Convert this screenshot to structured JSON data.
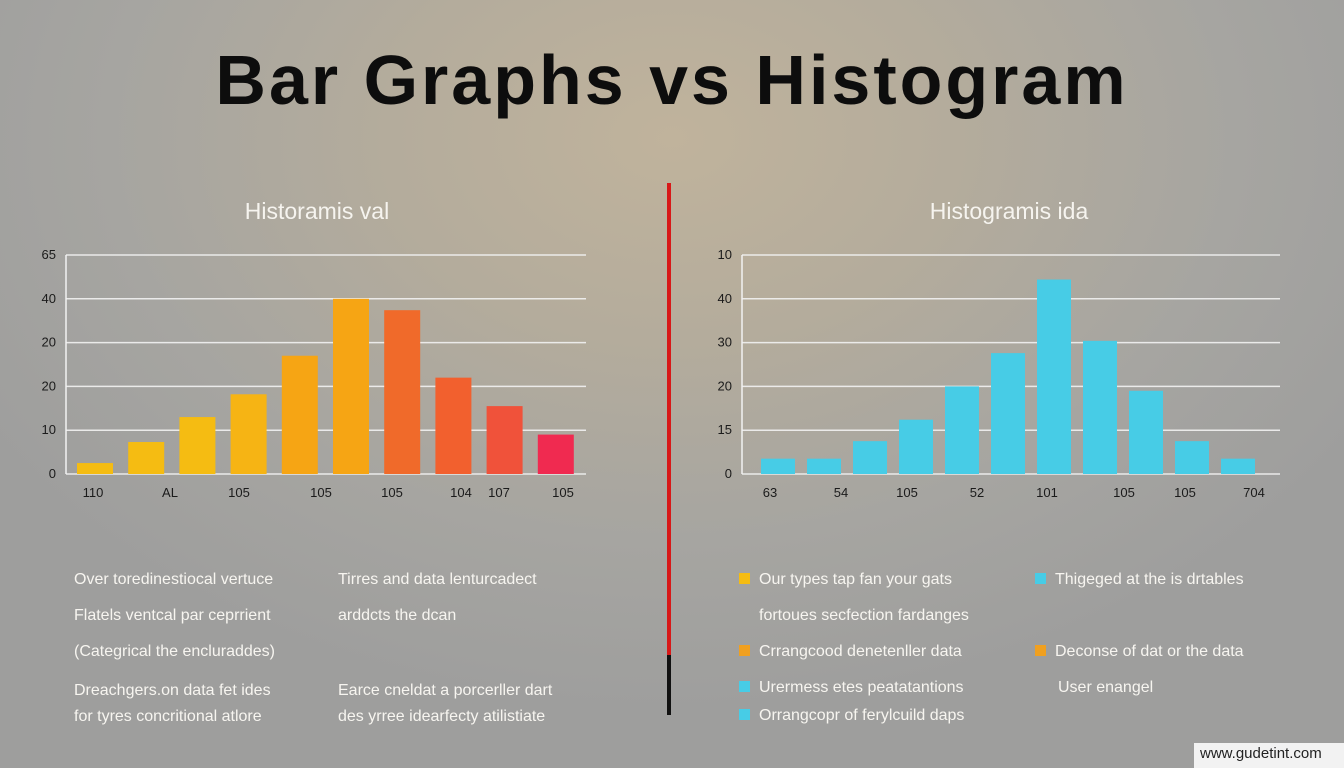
{
  "title": "Bar Graphs vs Histogram",
  "left": {
    "subtitle": "Historamis val",
    "chart_data": {
      "type": "bar",
      "y_ticks": [
        "0",
        "10",
        "20",
        "20",
        "40",
        "65"
      ],
      "x_ticks": [
        "110",
        "AL",
        "105",
        "105",
        "105",
        "104",
        "107",
        "105"
      ],
      "values": [
        2.5,
        7.3,
        13,
        18.2,
        27,
        40,
        37.4,
        22,
        15.5,
        9
      ],
      "colors": [
        "#f5bc12",
        "#f5bc12",
        "#f5bc12",
        "#f6b414",
        "#f6a514",
        "#f6a514",
        "#f06a2a",
        "#f2602e",
        "#f0523a",
        "#f02a50"
      ],
      "ylim": [
        0,
        50
      ],
      "grid": true
    },
    "descriptions": [
      "Over toredinestiocal vertuce",
      "Flatels ventcal par ceprrient",
      "(Categrical the encluraddes)",
      "Dreachgers.on data fet ides",
      "for tyres concritional atlore",
      "Tirres and data lenturcadect",
      "arddcts the dcan",
      "Earce cneldat a porcerller dart",
      "des yrree idearfecty atilistiate"
    ]
  },
  "right": {
    "subtitle": "Histogramis ida",
    "chart_data": {
      "type": "bar",
      "y_ticks": [
        "0",
        "15",
        "20",
        "30",
        "40",
        "10"
      ],
      "x_ticks": [
        "63",
        "54",
        "105",
        "52",
        "101",
        "105",
        "105",
        "704"
      ],
      "values": [
        3.5,
        3.5,
        7.5,
        12.4,
        20,
        27.6,
        44.4,
        30.4,
        19,
        7.5,
        3.5
      ],
      "color": "#47cce6",
      "ylim": [
        0,
        50
      ],
      "grid": true
    },
    "legend": [
      {
        "text": "Our types tap fan your gats",
        "color": "#f5bc12"
      },
      {
        "text": "Thigeged at the is drtables",
        "color": "#47cce6"
      },
      {
        "text": "fortoues secfection fardanges",
        "color": ""
      },
      {
        "text": "Crrangcood denetenller data",
        "color": "#f0a020"
      },
      {
        "text": "Deconse of dat or the data",
        "color": "#f0a020"
      },
      {
        "text": "Urermess etes peatatantions",
        "color": "#47cce6"
      },
      {
        "text": "User enangel",
        "color": ""
      },
      {
        "text": "Orrangcopr of ferylcuild daps",
        "color": "#47cce6"
      }
    ]
  },
  "watermark": "www.gudetint.com",
  "colors": {
    "divider_red": "#d81818",
    "divider_black": "#111111"
  }
}
